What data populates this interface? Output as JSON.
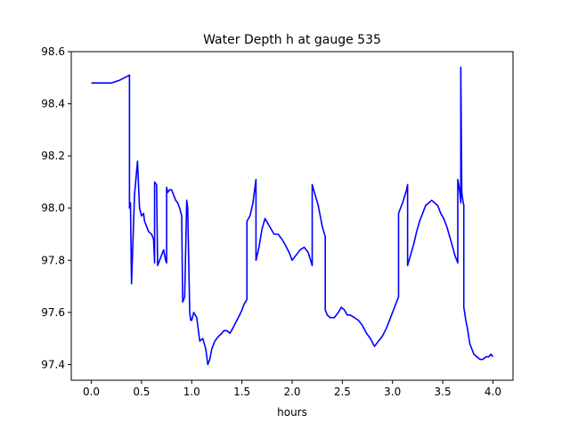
{
  "chart_data": {
    "type": "line",
    "title": "Water Depth h at gauge 535",
    "xlabel": "hours",
    "ylabel": "",
    "xlim": [
      -0.2,
      4.2
    ],
    "ylim": [
      97.34,
      98.6
    ],
    "xticks": [
      0.0,
      0.5,
      1.0,
      1.5,
      2.0,
      2.5,
      3.0,
      3.5,
      4.0
    ],
    "xtick_labels": [
      "0.0",
      "0.5",
      "1.0",
      "1.5",
      "2.0",
      "2.5",
      "3.0",
      "3.5",
      "4.0"
    ],
    "yticks": [
      97.4,
      97.6,
      97.8,
      98.0,
      98.2,
      98.4,
      98.6
    ],
    "ytick_labels": [
      "97.4",
      "97.6",
      "97.8",
      "98.0",
      "98.2",
      "98.4",
      "98.6"
    ],
    "grid": false,
    "series": [
      {
        "color": "#0000ff",
        "x": [
          0.0,
          0.1,
          0.2,
          0.28,
          0.33,
          0.38,
          0.38,
          0.39,
          0.4,
          0.41,
          0.43,
          0.46,
          0.48,
          0.5,
          0.52,
          0.53,
          0.55,
          0.57,
          0.6,
          0.62,
          0.63,
          0.63,
          0.65,
          0.66,
          0.68,
          0.7,
          0.72,
          0.74,
          0.75,
          0.75,
          0.76,
          0.78,
          0.8,
          0.82,
          0.84,
          0.86,
          0.88,
          0.9,
          0.91,
          0.93,
          0.95,
          0.96,
          0.98,
          0.99,
          1.0,
          1.02,
          1.05,
          1.08,
          1.11,
          1.14,
          1.16,
          1.18,
          1.2,
          1.23,
          1.27,
          1.3,
          1.32,
          1.35,
          1.38,
          1.41,
          1.45,
          1.49,
          1.52,
          1.55,
          1.55,
          1.58,
          1.61,
          1.64,
          1.64,
          1.67,
          1.7,
          1.73,
          1.76,
          1.79,
          1.82,
          1.86,
          1.9,
          1.93,
          1.97,
          2.0,
          2.04,
          2.08,
          2.12,
          2.16,
          2.2,
          2.2,
          2.23,
          2.26,
          2.28,
          2.3,
          2.33,
          2.33,
          2.35,
          2.38,
          2.42,
          2.46,
          2.49,
          2.52,
          2.55,
          2.58,
          2.62,
          2.66,
          2.7,
          2.74,
          2.78,
          2.82,
          2.86,
          2.9,
          2.94,
          2.98,
          3.02,
          3.06,
          3.06,
          3.1,
          3.14,
          3.15,
          3.15,
          3.18,
          3.21,
          3.24,
          3.27,
          3.3,
          3.33,
          3.36,
          3.39,
          3.42,
          3.45,
          3.48,
          3.51,
          3.54,
          3.57,
          3.6,
          3.62,
          3.64,
          3.65,
          3.65,
          3.66,
          3.67,
          3.68,
          3.68,
          3.69,
          3.7,
          3.71,
          3.71,
          3.73,
          3.75,
          3.77,
          3.79,
          3.81,
          3.84,
          3.87,
          3.9,
          3.93,
          3.96,
          3.98,
          4.0
        ],
        "y": [
          98.48,
          98.48,
          98.48,
          98.49,
          98.5,
          98.51,
          98.0,
          98.02,
          97.71,
          97.82,
          98.05,
          98.18,
          98.0,
          97.97,
          97.98,
          97.95,
          97.93,
          97.91,
          97.9,
          97.88,
          97.79,
          98.1,
          98.09,
          97.78,
          97.8,
          97.82,
          97.84,
          97.8,
          97.79,
          98.08,
          98.06,
          98.07,
          98.07,
          98.05,
          98.03,
          98.02,
          98.0,
          97.97,
          97.64,
          97.66,
          98.03,
          98.0,
          97.6,
          97.57,
          97.57,
          97.6,
          97.58,
          97.49,
          97.5,
          97.46,
          97.4,
          97.42,
          97.46,
          97.49,
          97.51,
          97.52,
          97.53,
          97.53,
          97.52,
          97.54,
          97.57,
          97.6,
          97.63,
          97.65,
          97.95,
          97.97,
          98.02,
          98.11,
          97.8,
          97.85,
          97.92,
          97.96,
          97.94,
          97.92,
          97.9,
          97.9,
          97.88,
          97.86,
          97.83,
          97.8,
          97.82,
          97.84,
          97.85,
          97.83,
          97.78,
          98.09,
          98.05,
          98.01,
          97.97,
          97.93,
          97.89,
          97.61,
          97.59,
          97.58,
          97.58,
          97.6,
          97.62,
          97.61,
          97.59,
          97.59,
          97.58,
          97.57,
          97.55,
          97.52,
          97.5,
          97.47,
          97.49,
          97.51,
          97.54,
          97.58,
          97.62,
          97.66,
          97.98,
          98.02,
          98.07,
          98.09,
          97.78,
          97.82,
          97.86,
          97.91,
          97.95,
          97.98,
          98.01,
          98.02,
          98.03,
          98.02,
          98.01,
          97.98,
          97.96,
          97.93,
          97.89,
          97.85,
          97.82,
          97.8,
          97.79,
          98.11,
          98.09,
          98.06,
          98.02,
          98.54,
          98.06,
          98.03,
          98.01,
          97.62,
          97.57,
          97.53,
          97.48,
          97.46,
          97.44,
          97.43,
          97.42,
          97.42,
          97.43,
          97.43,
          97.44,
          97.43
        ]
      }
    ]
  }
}
